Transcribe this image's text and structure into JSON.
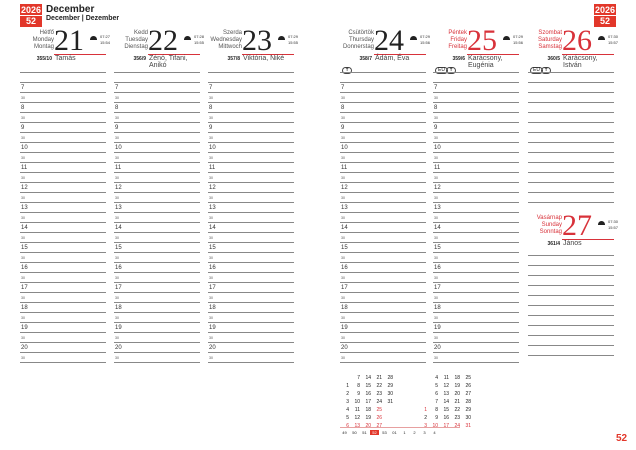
{
  "year": "2026",
  "week": "52",
  "month": {
    "title": "December",
    "subtitle": "December | Dezember"
  },
  "days": [
    {
      "names": [
        "Hétfő",
        "Monday",
        "Montag"
      ],
      "num": "21",
      "rise": "07:27",
      "set": "15:54",
      "doy": "355/10",
      "nameday": "Tamás",
      "red": false,
      "moon": []
    },
    {
      "names": [
        "Kedd",
        "Tuesday",
        "Dienstag"
      ],
      "num": "22",
      "rise": "07:28",
      "set": "15:55",
      "doy": "356/9",
      "nameday": "Zénó, Tifani, Anikó",
      "red": false,
      "moon": []
    },
    {
      "names": [
        "Szerda",
        "Wednesday",
        "Mittwoch"
      ],
      "num": "23",
      "rise": "07:29",
      "set": "15:55",
      "doy": "357/8",
      "nameday": "Viktória, Niké",
      "red": false,
      "moon": []
    },
    {
      "names": [
        "Csütörtök",
        "Thursday",
        "Donnerstag"
      ],
      "num": "24",
      "rise": "07:29",
      "set": "15:56",
      "doy": "358/7",
      "nameday": "Ádám, Éva",
      "red": false,
      "moon": [
        "✝"
      ]
    },
    {
      "names": [
        "Péntek",
        "Friday",
        "Freitag"
      ],
      "num": "25",
      "rise": "07:29",
      "set": "15:56",
      "doy": "359/6",
      "nameday": "Karácsony, Eugénia",
      "red": true,
      "moon": [
        "EU",
        "✝"
      ]
    },
    {
      "names": [
        "Szombat",
        "Saturday",
        "Samstag"
      ],
      "num": "26",
      "rise": "07:30",
      "set": "15:57",
      "doy": "360/5",
      "nameday": "Karácsony, István",
      "red": true,
      "moon": [
        "EU",
        "✝"
      ]
    },
    {
      "names": [
        "Vasárnap",
        "Sunday",
        "Sonntag"
      ],
      "num": "27",
      "rise": "07:30",
      "set": "15:57",
      "doy": "361/4",
      "nameday": "János",
      "red": true,
      "moon": []
    }
  ],
  "hours": [
    "7",
    "8",
    "9",
    "10",
    "11",
    "12",
    "13",
    "14",
    "15",
    "16",
    "17",
    "18",
    "19",
    "20"
  ],
  "half": "30",
  "minical": {
    "dec": [
      [
        "",
        "7",
        "14",
        "21",
        "28"
      ],
      [
        "1",
        "8",
        "15",
        "22",
        "29"
      ],
      [
        "2",
        "9",
        "16",
        "23",
        "30"
      ],
      [
        "3",
        "10",
        "17",
        "24",
        "31"
      ],
      [
        "4",
        "11",
        "18",
        "25",
        ""
      ],
      [
        "5",
        "12",
        "19",
        "26",
        ""
      ],
      [
        "6",
        "13",
        "20",
        "27",
        ""
      ]
    ],
    "jan": [
      [
        "",
        "4",
        "11",
        "18",
        "25"
      ],
      [
        "",
        "5",
        "12",
        "19",
        "26"
      ],
      [
        "",
        "6",
        "13",
        "20",
        "27"
      ],
      [
        "",
        "7",
        "14",
        "21",
        "28"
      ],
      [
        "1",
        "8",
        "15",
        "22",
        "29"
      ],
      [
        "2",
        "9",
        "16",
        "23",
        "30"
      ],
      [
        "3",
        "10",
        "17",
        "24",
        "31"
      ]
    ],
    "weeks": [
      "49",
      "50",
      "51",
      "52",
      "53",
      "01",
      "1",
      "2",
      "3",
      "4"
    ],
    "current_week": "52"
  },
  "page_number": "52",
  "accent": "#e2372a"
}
